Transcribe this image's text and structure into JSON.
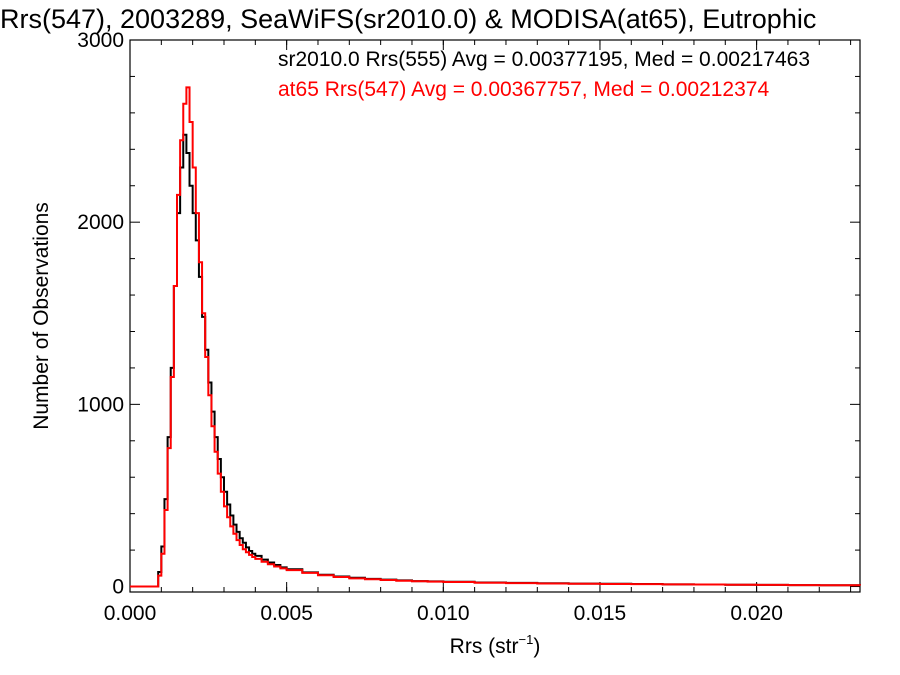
{
  "chart_data": {
    "type": "line",
    "title": "Rrs(547), 2003289, SeaWiFS(sr2010.0) & MODISA(at65), Eutrophic",
    "xlabel": "Rrs (str",
    "xlabel_sup": "−1",
    "xlabel_close": ")",
    "ylabel": "Number of Observations",
    "xlim": [
      0.0,
      0.0233
    ],
    "ylim": [
      -30,
      3000
    ],
    "x_ticks": [
      0.0,
      0.005,
      0.01,
      0.015,
      0.02
    ],
    "x_tick_labels": [
      "0.000",
      "0.005",
      "0.010",
      "0.015",
      "0.020"
    ],
    "y_ticks": [
      0,
      1000,
      2000,
      3000
    ],
    "y_tick_labels": [
      "0",
      "1000",
      "2000",
      "3000"
    ],
    "legend": [
      {
        "text": "sr2010.0 Rrs(555) Avg = 0.00377195, Med = 0.00217463",
        "color": "#000000"
      },
      {
        "text": "at65 Rrs(547) Avg = 0.00367757, Med = 0.00212374",
        "color": "#ff0000"
      }
    ],
    "legend_position": "top-right",
    "series": [
      {
        "color": "#000000",
        "step": true,
        "points": [
          [
            0.0,
            0
          ],
          [
            0.0008,
            0
          ],
          [
            0.0009,
            80
          ],
          [
            0.001,
            220
          ],
          [
            0.0011,
            480
          ],
          [
            0.0012,
            820
          ],
          [
            0.0013,
            1200
          ],
          [
            0.0014,
            1650
          ],
          [
            0.0015,
            2050
          ],
          [
            0.0016,
            2300
          ],
          [
            0.0017,
            2480
          ],
          [
            0.0018,
            2380
          ],
          [
            0.0019,
            2200
          ],
          [
            0.002,
            2050
          ],
          [
            0.0021,
            1900
          ],
          [
            0.0022,
            1700
          ],
          [
            0.0023,
            1480
          ],
          [
            0.0024,
            1300
          ],
          [
            0.0025,
            1120
          ],
          [
            0.0026,
            960
          ],
          [
            0.0027,
            820
          ],
          [
            0.0028,
            700
          ],
          [
            0.0029,
            600
          ],
          [
            0.003,
            520
          ],
          [
            0.0031,
            450
          ],
          [
            0.0032,
            390
          ],
          [
            0.0033,
            340
          ],
          [
            0.0034,
            300
          ],
          [
            0.0035,
            265
          ],
          [
            0.0036,
            240
          ],
          [
            0.0037,
            215
          ],
          [
            0.0038,
            195
          ],
          [
            0.0039,
            180
          ],
          [
            0.004,
            168
          ],
          [
            0.0042,
            148
          ],
          [
            0.0044,
            132
          ],
          [
            0.0046,
            118
          ],
          [
            0.0048,
            105
          ],
          [
            0.005,
            95
          ],
          [
            0.0055,
            78
          ],
          [
            0.006,
            65
          ],
          [
            0.0065,
            55
          ],
          [
            0.007,
            48
          ],
          [
            0.0075,
            42
          ],
          [
            0.008,
            38
          ],
          [
            0.0085,
            34
          ],
          [
            0.009,
            30
          ],
          [
            0.0095,
            28
          ],
          [
            0.01,
            26
          ],
          [
            0.011,
            22
          ],
          [
            0.012,
            20
          ],
          [
            0.013,
            18
          ],
          [
            0.014,
            16
          ],
          [
            0.015,
            15
          ],
          [
            0.016,
            14
          ],
          [
            0.017,
            12
          ],
          [
            0.018,
            11
          ],
          [
            0.019,
            10
          ],
          [
            0.02,
            9
          ],
          [
            0.021,
            8
          ],
          [
            0.022,
            7
          ],
          [
            0.0233,
            6
          ]
        ]
      },
      {
        "color": "#ff0000",
        "step": true,
        "points": [
          [
            0.0,
            0
          ],
          [
            0.0008,
            0
          ],
          [
            0.0009,
            60
          ],
          [
            0.001,
            180
          ],
          [
            0.0011,
            420
          ],
          [
            0.0012,
            760
          ],
          [
            0.0013,
            1150
          ],
          [
            0.0014,
            1650
          ],
          [
            0.0015,
            2150
          ],
          [
            0.0016,
            2450
          ],
          [
            0.0017,
            2650
          ],
          [
            0.0018,
            2740
          ],
          [
            0.0019,
            2550
          ],
          [
            0.002,
            2300
          ],
          [
            0.0021,
            2050
          ],
          [
            0.0022,
            1780
          ],
          [
            0.0023,
            1500
          ],
          [
            0.0024,
            1260
          ],
          [
            0.0025,
            1050
          ],
          [
            0.0026,
            880
          ],
          [
            0.0027,
            740
          ],
          [
            0.0028,
            620
          ],
          [
            0.0029,
            520
          ],
          [
            0.003,
            440
          ],
          [
            0.0031,
            380
          ],
          [
            0.0032,
            330
          ],
          [
            0.0033,
            290
          ],
          [
            0.0034,
            255
          ],
          [
            0.0035,
            228
          ],
          [
            0.0036,
            205
          ],
          [
            0.0037,
            188
          ],
          [
            0.0038,
            174
          ],
          [
            0.0039,
            162
          ],
          [
            0.004,
            152
          ],
          [
            0.0042,
            136
          ],
          [
            0.0044,
            122
          ],
          [
            0.0046,
            110
          ],
          [
            0.0048,
            100
          ],
          [
            0.005,
            90
          ],
          [
            0.0055,
            75
          ],
          [
            0.006,
            62
          ],
          [
            0.0065,
            52
          ],
          [
            0.007,
            45
          ],
          [
            0.0075,
            40
          ],
          [
            0.008,
            36
          ],
          [
            0.0085,
            32
          ],
          [
            0.009,
            29
          ],
          [
            0.0095,
            27
          ],
          [
            0.01,
            25
          ],
          [
            0.011,
            21
          ],
          [
            0.012,
            19
          ],
          [
            0.013,
            17
          ],
          [
            0.014,
            15
          ],
          [
            0.015,
            14
          ],
          [
            0.016,
            13
          ],
          [
            0.017,
            12
          ],
          [
            0.018,
            11
          ],
          [
            0.019,
            10
          ],
          [
            0.02,
            9
          ],
          [
            0.021,
            8
          ],
          [
            0.022,
            7
          ],
          [
            0.0233,
            6
          ]
        ]
      }
    ]
  }
}
